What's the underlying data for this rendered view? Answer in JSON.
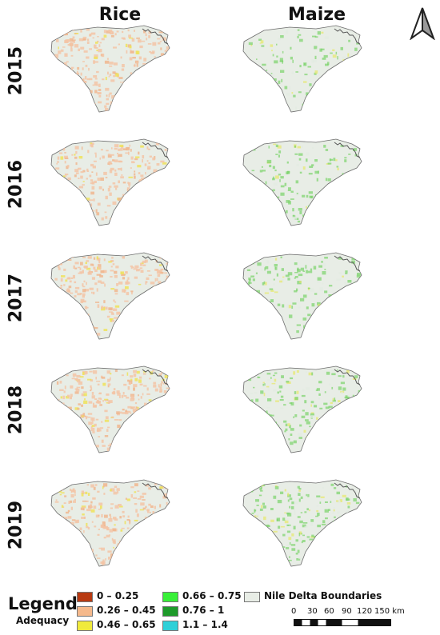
{
  "columns": [
    "Rice",
    "Maize"
  ],
  "years": [
    "2015",
    "2016",
    "2017",
    "2018",
    "2019"
  ],
  "legend": {
    "title": "Legend",
    "subtitle": "Adequacy",
    "classes": [
      {
        "label": "0 – 0.25",
        "color": "#b83a12"
      },
      {
        "label": "0.26 – 0.45",
        "color": "#f5b98c"
      },
      {
        "label": "0.46 – 0.65",
        "color": "#f0ea3c"
      },
      {
        "label": "0.66 – 0.75",
        "color": "#38f038"
      },
      {
        "label": "0.76 – 1",
        "color": "#1e9a2a"
      },
      {
        "label": "1.1 – 1.4",
        "color": "#2ed0d8"
      }
    ],
    "boundary_label": "Nile Delta Boundaries",
    "boundary_color": "#e8ede6"
  },
  "scale_bar": {
    "ticks": [
      "0",
      "30",
      "60",
      "90",
      "120",
      "150 km"
    ]
  },
  "north_arrow": "north-arrow-icon",
  "colors": {
    "rice_fill": "#f3c4a6",
    "rice_dense": "#f0b68e",
    "rice_yellow": "#efe25a",
    "maize_fill": "#e3ebe1",
    "maize_green": "#7bd36a",
    "maize_yellow": "#e7e86a",
    "delta_base": "#e8ede6",
    "delta_outline": "#6b6b6b"
  }
}
